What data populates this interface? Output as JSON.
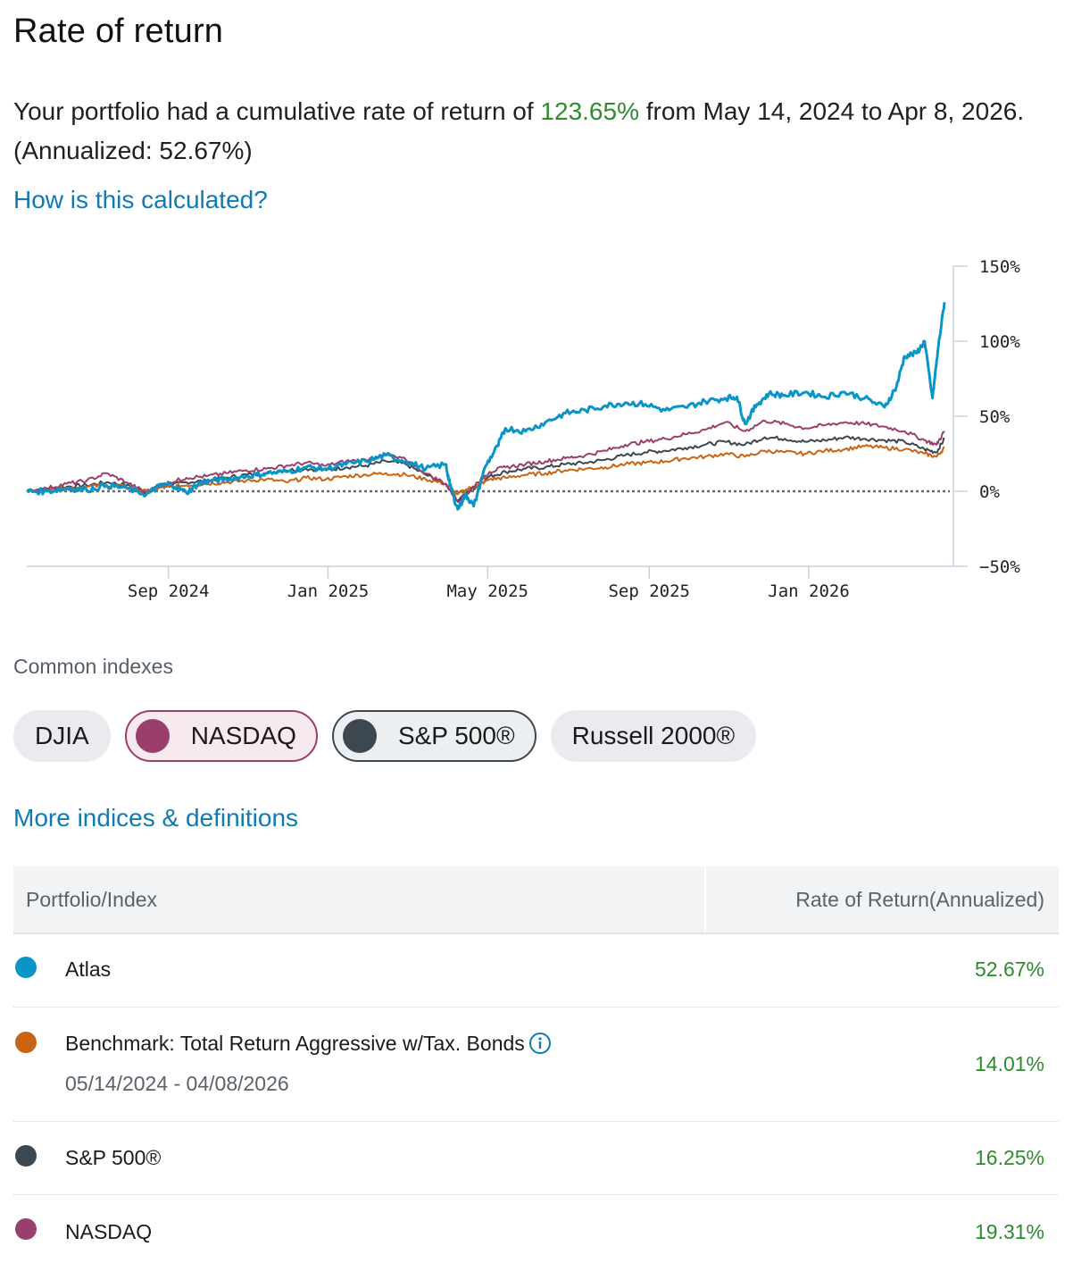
{
  "header": {
    "title": "Rate of return",
    "summary_prefix": "Your portfolio had a cumulative rate of return of ",
    "cumulative_return": "123.65%",
    "summary_suffix": " from May 14, 2024 to Apr 8, 2026. (Annualized: 52.67%)",
    "how_link": "How is this calculated?"
  },
  "chart_data": {
    "type": "line",
    "x_ticks": [
      "Sep 2024",
      "Jan 2025",
      "May 2025",
      "Sep 2025",
      "Jan 2026"
    ],
    "y_ticks": [
      "150%",
      "100%",
      "50%",
      "0%",
      "−50%"
    ],
    "ylim": [
      -50,
      150
    ],
    "x_range_months": [
      0,
      23
    ],
    "x_tick_months": [
      3.55,
      7.55,
      11.55,
      15.6,
      19.6
    ],
    "baseline": 0,
    "series": [
      {
        "name": "S&P 500®",
        "color": "#3d4750",
        "points": [
          [
            0,
            0
          ],
          [
            0.5,
            1
          ],
          [
            1,
            3
          ],
          [
            1.5,
            4
          ],
          [
            2,
            6
          ],
          [
            2.5,
            4
          ],
          [
            3,
            -1
          ],
          [
            3.3,
            3
          ],
          [
            3.6,
            4
          ],
          [
            4,
            6
          ],
          [
            4.5,
            7
          ],
          [
            5,
            9
          ],
          [
            5.5,
            11
          ],
          [
            6,
            12
          ],
          [
            6.5,
            14
          ],
          [
            7,
            15
          ],
          [
            7.5,
            14
          ],
          [
            8,
            16
          ],
          [
            8.5,
            17
          ],
          [
            9,
            20
          ],
          [
            9.5,
            18
          ],
          [
            10,
            11
          ],
          [
            10.5,
            5
          ],
          [
            10.8,
            -6
          ],
          [
            11,
            -2
          ],
          [
            11.3,
            4
          ],
          [
            11.6,
            10
          ],
          [
            12,
            13
          ],
          [
            12.5,
            15
          ],
          [
            13,
            16
          ],
          [
            13.5,
            18
          ],
          [
            14,
            19
          ],
          [
            14.5,
            21
          ],
          [
            15,
            24
          ],
          [
            15.5,
            26
          ],
          [
            16,
            27
          ],
          [
            16.5,
            29
          ],
          [
            17,
            31
          ],
          [
            17.5,
            33
          ],
          [
            18,
            31
          ],
          [
            18.5,
            36
          ],
          [
            19,
            35
          ],
          [
            19.5,
            33
          ],
          [
            20,
            34
          ],
          [
            20.5,
            36
          ],
          [
            21,
            35
          ],
          [
            21.5,
            34
          ],
          [
            22,
            33
          ],
          [
            22.5,
            28
          ],
          [
            22.8,
            26
          ],
          [
            23,
            35
          ]
        ]
      },
      {
        "name": "Benchmark",
        "color": "#c96414",
        "points": [
          [
            0,
            0
          ],
          [
            0.5,
            1
          ],
          [
            1,
            2
          ],
          [
            1.5,
            3
          ],
          [
            2,
            4
          ],
          [
            2.5,
            3
          ],
          [
            3,
            0
          ],
          [
            3.3,
            2
          ],
          [
            3.6,
            3
          ],
          [
            4,
            4
          ],
          [
            4.5,
            5
          ],
          [
            5,
            6
          ],
          [
            5.5,
            7
          ],
          [
            6,
            8
          ],
          [
            6.5,
            6
          ],
          [
            7,
            9
          ],
          [
            7.5,
            8
          ],
          [
            8,
            10
          ],
          [
            8.5,
            11
          ],
          [
            9,
            12
          ],
          [
            9.5,
            11
          ],
          [
            10,
            8
          ],
          [
            10.5,
            5
          ],
          [
            10.8,
            -2
          ],
          [
            11,
            1
          ],
          [
            11.3,
            4
          ],
          [
            11.6,
            8
          ],
          [
            12,
            9
          ],
          [
            12.5,
            11
          ],
          [
            13,
            12
          ],
          [
            13.5,
            14
          ],
          [
            14,
            15
          ],
          [
            14.5,
            16
          ],
          [
            15,
            18
          ],
          [
            15.5,
            19
          ],
          [
            16,
            20
          ],
          [
            16.5,
            22
          ],
          [
            17,
            23
          ],
          [
            17.5,
            25
          ],
          [
            18,
            23
          ],
          [
            18.5,
            27
          ],
          [
            19,
            26
          ],
          [
            19.5,
            25
          ],
          [
            20,
            27
          ],
          [
            20.5,
            28
          ],
          [
            21,
            30
          ],
          [
            21.5,
            29
          ],
          [
            22,
            28
          ],
          [
            22.5,
            25
          ],
          [
            22.8,
            23
          ],
          [
            23,
            29
          ]
        ]
      },
      {
        "name": "NASDAQ",
        "color": "#9a3e6c",
        "points": [
          [
            0,
            0
          ],
          [
            0.5,
            2
          ],
          [
            1,
            5
          ],
          [
            1.5,
            7
          ],
          [
            2,
            12
          ],
          [
            2.5,
            6
          ],
          [
            3,
            -1
          ],
          [
            3.3,
            4
          ],
          [
            3.6,
            6
          ],
          [
            4,
            9
          ],
          [
            4.5,
            10
          ],
          [
            5,
            12
          ],
          [
            5.5,
            14
          ],
          [
            6,
            15
          ],
          [
            6.5,
            17
          ],
          [
            7,
            19
          ],
          [
            7.5,
            17
          ],
          [
            8,
            20
          ],
          [
            8.5,
            21
          ],
          [
            9,
            24
          ],
          [
            9.5,
            21
          ],
          [
            10,
            12
          ],
          [
            10.5,
            5
          ],
          [
            10.8,
            -7
          ],
          [
            11,
            -2
          ],
          [
            11.3,
            6
          ],
          [
            11.6,
            13
          ],
          [
            12,
            16
          ],
          [
            12.5,
            18
          ],
          [
            13,
            20
          ],
          [
            13.5,
            22
          ],
          [
            14,
            24
          ],
          [
            14.5,
            27
          ],
          [
            15,
            31
          ],
          [
            15.5,
            33
          ],
          [
            16,
            35
          ],
          [
            16.5,
            38
          ],
          [
            17,
            41
          ],
          [
            17.5,
            46
          ],
          [
            18,
            40
          ],
          [
            18.5,
            47
          ],
          [
            19,
            45
          ],
          [
            19.5,
            42
          ],
          [
            20,
            44
          ],
          [
            20.5,
            46
          ],
          [
            21,
            45
          ],
          [
            21.5,
            43
          ],
          [
            22,
            40
          ],
          [
            22.5,
            34
          ],
          [
            22.8,
            31
          ],
          [
            23,
            40
          ]
        ]
      },
      {
        "name": "Atlas",
        "color": "#0a95c8",
        "points": [
          [
            0,
            0
          ],
          [
            0.5,
            0
          ],
          [
            1,
            2
          ],
          [
            1.5,
            1
          ],
          [
            2,
            4
          ],
          [
            2.5,
            2
          ],
          [
            3,
            -2
          ],
          [
            3.3,
            3
          ],
          [
            3.6,
            5
          ],
          [
            4,
            -1
          ],
          [
            4.3,
            5
          ],
          [
            4.6,
            7
          ],
          [
            5,
            8
          ],
          [
            5.5,
            10
          ],
          [
            6,
            12
          ],
          [
            6.5,
            13
          ],
          [
            7,
            16
          ],
          [
            7.5,
            15
          ],
          [
            8,
            18
          ],
          [
            8.5,
            20
          ],
          [
            9,
            24
          ],
          [
            9.5,
            20
          ],
          [
            10,
            15
          ],
          [
            10.5,
            18
          ],
          [
            10.6,
            5
          ],
          [
            10.8,
            -12
          ],
          [
            11,
            -2
          ],
          [
            11.2,
            -10
          ],
          [
            11.5,
            17
          ],
          [
            11.8,
            30
          ],
          [
            12,
            42
          ],
          [
            12.5,
            40
          ],
          [
            13,
            46
          ],
          [
            13.5,
            52
          ],
          [
            14,
            54
          ],
          [
            14.5,
            57
          ],
          [
            15,
            59
          ],
          [
            15.5,
            58
          ],
          [
            16,
            54
          ],
          [
            16.5,
            56
          ],
          [
            17,
            60
          ],
          [
            17.5,
            62
          ],
          [
            17.8,
            63
          ],
          [
            18,
            45
          ],
          [
            18.3,
            58
          ],
          [
            18.6,
            65
          ],
          [
            19,
            64
          ],
          [
            19.5,
            66
          ],
          [
            20,
            63
          ],
          [
            20.5,
            66
          ],
          [
            21,
            62
          ],
          [
            21.5,
            56
          ],
          [
            21.8,
            70
          ],
          [
            22,
            90
          ],
          [
            22.3,
            92
          ],
          [
            22.5,
            100
          ],
          [
            22.7,
            62
          ],
          [
            22.85,
            97
          ],
          [
            23,
            126
          ]
        ]
      }
    ]
  },
  "common_indexes": {
    "label": "Common indexes",
    "chips": [
      {
        "label": "DJIA",
        "selected": false,
        "color": ""
      },
      {
        "label": "NASDAQ",
        "selected": true,
        "color": "#9a3e6c"
      },
      {
        "label": "S&P 500®",
        "selected": true,
        "color": "#3d4750"
      },
      {
        "label": "Russell 2000®",
        "selected": false,
        "color": ""
      }
    ]
  },
  "more_link": "More indices & definitions",
  "table": {
    "header_col1": "Portfolio/Index",
    "header_col2": "Rate of Return(Annualized)",
    "rows": [
      {
        "name": "Atlas",
        "sub": "",
        "value": "52.67%",
        "color": "#0a95c8"
      },
      {
        "name": "Benchmark: Total Return Aggressive w/Tax. Bonds",
        "sub": "05/14/2024 - 04/08/2026",
        "value": "14.01%",
        "color": "#c96414"
      },
      {
        "name": "S&P 500®",
        "sub": "",
        "value": "16.25%",
        "color": "#3d4750"
      },
      {
        "name": "NASDAQ",
        "sub": "",
        "value": "19.31%",
        "color": "#9a3e6c"
      }
    ]
  }
}
